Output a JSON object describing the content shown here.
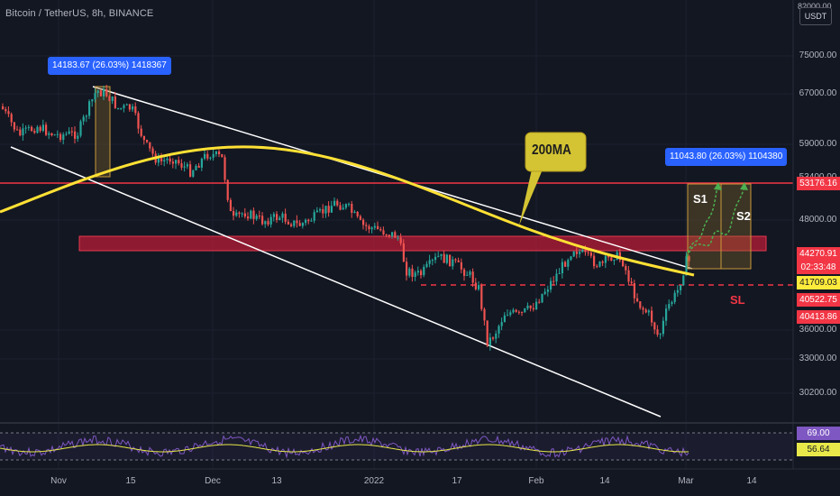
{
  "header": {
    "title": "Bitcoin / TetherUS, 8h, BINANCE",
    "currency": "USDT",
    "top_truncated_tick": "82000.00"
  },
  "price_axis": {
    "ticks": [
      "75000.00",
      "67000.00",
      "59000.00",
      "53400.00",
      "48000.00",
      "36000.00",
      "33000.00",
      "30200.00"
    ],
    "labels": {
      "resistance": {
        "value": "53176.16",
        "color": "#f23645"
      },
      "last_price": {
        "value": "44270.91",
        "color": "#f23645"
      },
      "countdown": {
        "value": "02:33:48"
      },
      "ma_value": {
        "value": "41709.03",
        "color": "#ffeb3b"
      },
      "level_1": {
        "value": "40522.75",
        "color": "#f23645"
      },
      "level_2": {
        "value": "40413.86",
        "color": "#f23645"
      }
    }
  },
  "rsi_axis": {
    "upper": {
      "value": "69.00",
      "color": "#7e57c2"
    },
    "lower": {
      "value": "56.64",
      "color": "#e8e84a"
    }
  },
  "time_axis": [
    "Nov",
    "15",
    "Dec",
    "13",
    "2022",
    "17",
    "Feb",
    "14",
    "Mar",
    "14"
  ],
  "annotations": {
    "measure_left": "14183.67 (26.03%) 1418367",
    "measure_right": "11043.80 (26.03%) 1104380",
    "ma_callout": "200MA",
    "s1": "S1",
    "s2": "S2",
    "sl": "SL"
  },
  "colors": {
    "background": "#131722",
    "up_candle": "#26a69a",
    "down_candle": "#ef5350",
    "ma_line": "#ffe135",
    "channel_line": "#ffffff",
    "resistance_zone": "#b71c35",
    "rsi_line": "#7e57c2",
    "rsi_signal": "#e8e84a"
  }
}
